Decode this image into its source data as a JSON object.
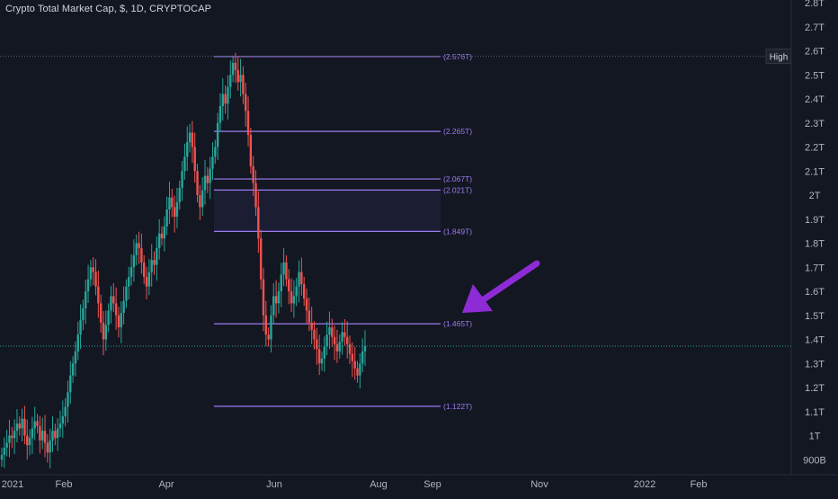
{
  "chart_data": {
    "type": "candlestick",
    "title": "Crypto Total Market Cap, $, 1D, CRYPTOCAP",
    "y_unit": "USD (trillions)",
    "ylim": [
      0.85,
      2.82
    ],
    "y_ticks": [
      {
        "v": 0.9,
        "label": "900B"
      },
      {
        "v": 1.0,
        "label": "1T"
      },
      {
        "v": 1.1,
        "label": "1.1T"
      },
      {
        "v": 1.2,
        "label": "1.2T"
      },
      {
        "v": 1.3,
        "label": "1.3T"
      },
      {
        "v": 1.4,
        "label": "1.4T"
      },
      {
        "v": 1.5,
        "label": "1.5T"
      },
      {
        "v": 1.6,
        "label": "1.6T"
      },
      {
        "v": 1.7,
        "label": "1.7T"
      },
      {
        "v": 1.8,
        "label": "1.8T"
      },
      {
        "v": 1.9,
        "label": "1.9T"
      },
      {
        "v": 2.0,
        "label": "2T"
      },
      {
        "v": 2.1,
        "label": "2.1T"
      },
      {
        "v": 2.2,
        "label": "2.2T"
      },
      {
        "v": 2.3,
        "label": "2.3T"
      },
      {
        "v": 2.4,
        "label": "2.4T"
      },
      {
        "v": 2.5,
        "label": "2.5T"
      },
      {
        "v": 2.6,
        "label": "2.6T"
      },
      {
        "v": 2.7,
        "label": "2.7T"
      },
      {
        "v": 2.8,
        "label": "2.8T"
      }
    ],
    "x_labels": [
      "2021",
      "Feb",
      "Apr",
      "Jun",
      "Aug",
      "Sep",
      "Nov",
      "2022",
      "Feb"
    ],
    "fib_levels": [
      {
        "value": 2.576,
        "label": "(2.576T)"
      },
      {
        "value": 2.265,
        "label": "(2.265T)"
      },
      {
        "value": 2.067,
        "label": "(2.067T)"
      },
      {
        "value": 2.021,
        "label": "(2.021T)"
      },
      {
        "value": 1.849,
        "label": "(1.849T)"
      },
      {
        "value": 1.465,
        "label": "(1.465T)"
      },
      {
        "value": 1.122,
        "label": "(1.122T)"
      }
    ],
    "high": {
      "label": "High",
      "value": 2.577,
      "text": "2.577T"
    },
    "last": {
      "value": 1.372,
      "text": "1.372T"
    },
    "candle_closes": [
      0.92,
      0.95,
      0.97,
      1.0,
      0.99,
      1.02,
      1.05,
      1.03,
      1.07,
      1.0,
      0.96,
      0.99,
      1.03,
      1.06,
      1.04,
      0.98,
      1.02,
      0.97,
      0.93,
      0.98,
      1.02,
      0.99,
      1.03,
      1.05,
      1.08,
      1.12,
      1.18,
      1.25,
      1.3,
      1.35,
      1.42,
      1.48,
      1.53,
      1.6,
      1.65,
      1.7,
      1.68,
      1.62,
      1.55,
      1.47,
      1.4,
      1.46,
      1.52,
      1.58,
      1.55,
      1.5,
      1.45,
      1.51,
      1.56,
      1.62,
      1.66,
      1.7,
      1.75,
      1.8,
      1.78,
      1.72,
      1.66,
      1.62,
      1.68,
      1.73,
      1.71,
      1.78,
      1.84,
      1.82,
      1.87,
      1.94,
      1.99,
      1.95,
      1.91,
      1.97,
      2.03,
      2.1,
      2.16,
      2.22,
      2.26,
      2.2,
      2.1,
      2.0,
      1.95,
      2.02,
      2.08,
      2.05,
      2.11,
      2.16,
      2.2,
      2.3,
      2.37,
      2.42,
      2.38,
      2.45,
      2.5,
      2.55,
      2.52,
      2.47,
      2.5,
      2.42,
      2.35,
      2.25,
      2.12,
      2.05,
      1.95,
      1.82,
      1.65,
      1.5,
      1.42,
      1.4,
      1.5,
      1.58,
      1.55,
      1.6,
      1.67,
      1.72,
      1.65,
      1.6,
      1.55,
      1.58,
      1.62,
      1.68,
      1.63,
      1.57,
      1.52,
      1.47,
      1.44,
      1.4,
      1.36,
      1.3,
      1.32,
      1.37,
      1.42,
      1.45,
      1.41,
      1.38,
      1.35,
      1.39,
      1.43,
      1.41,
      1.38,
      1.34,
      1.31,
      1.28,
      1.25,
      1.3,
      1.35,
      1.372
    ]
  }
}
